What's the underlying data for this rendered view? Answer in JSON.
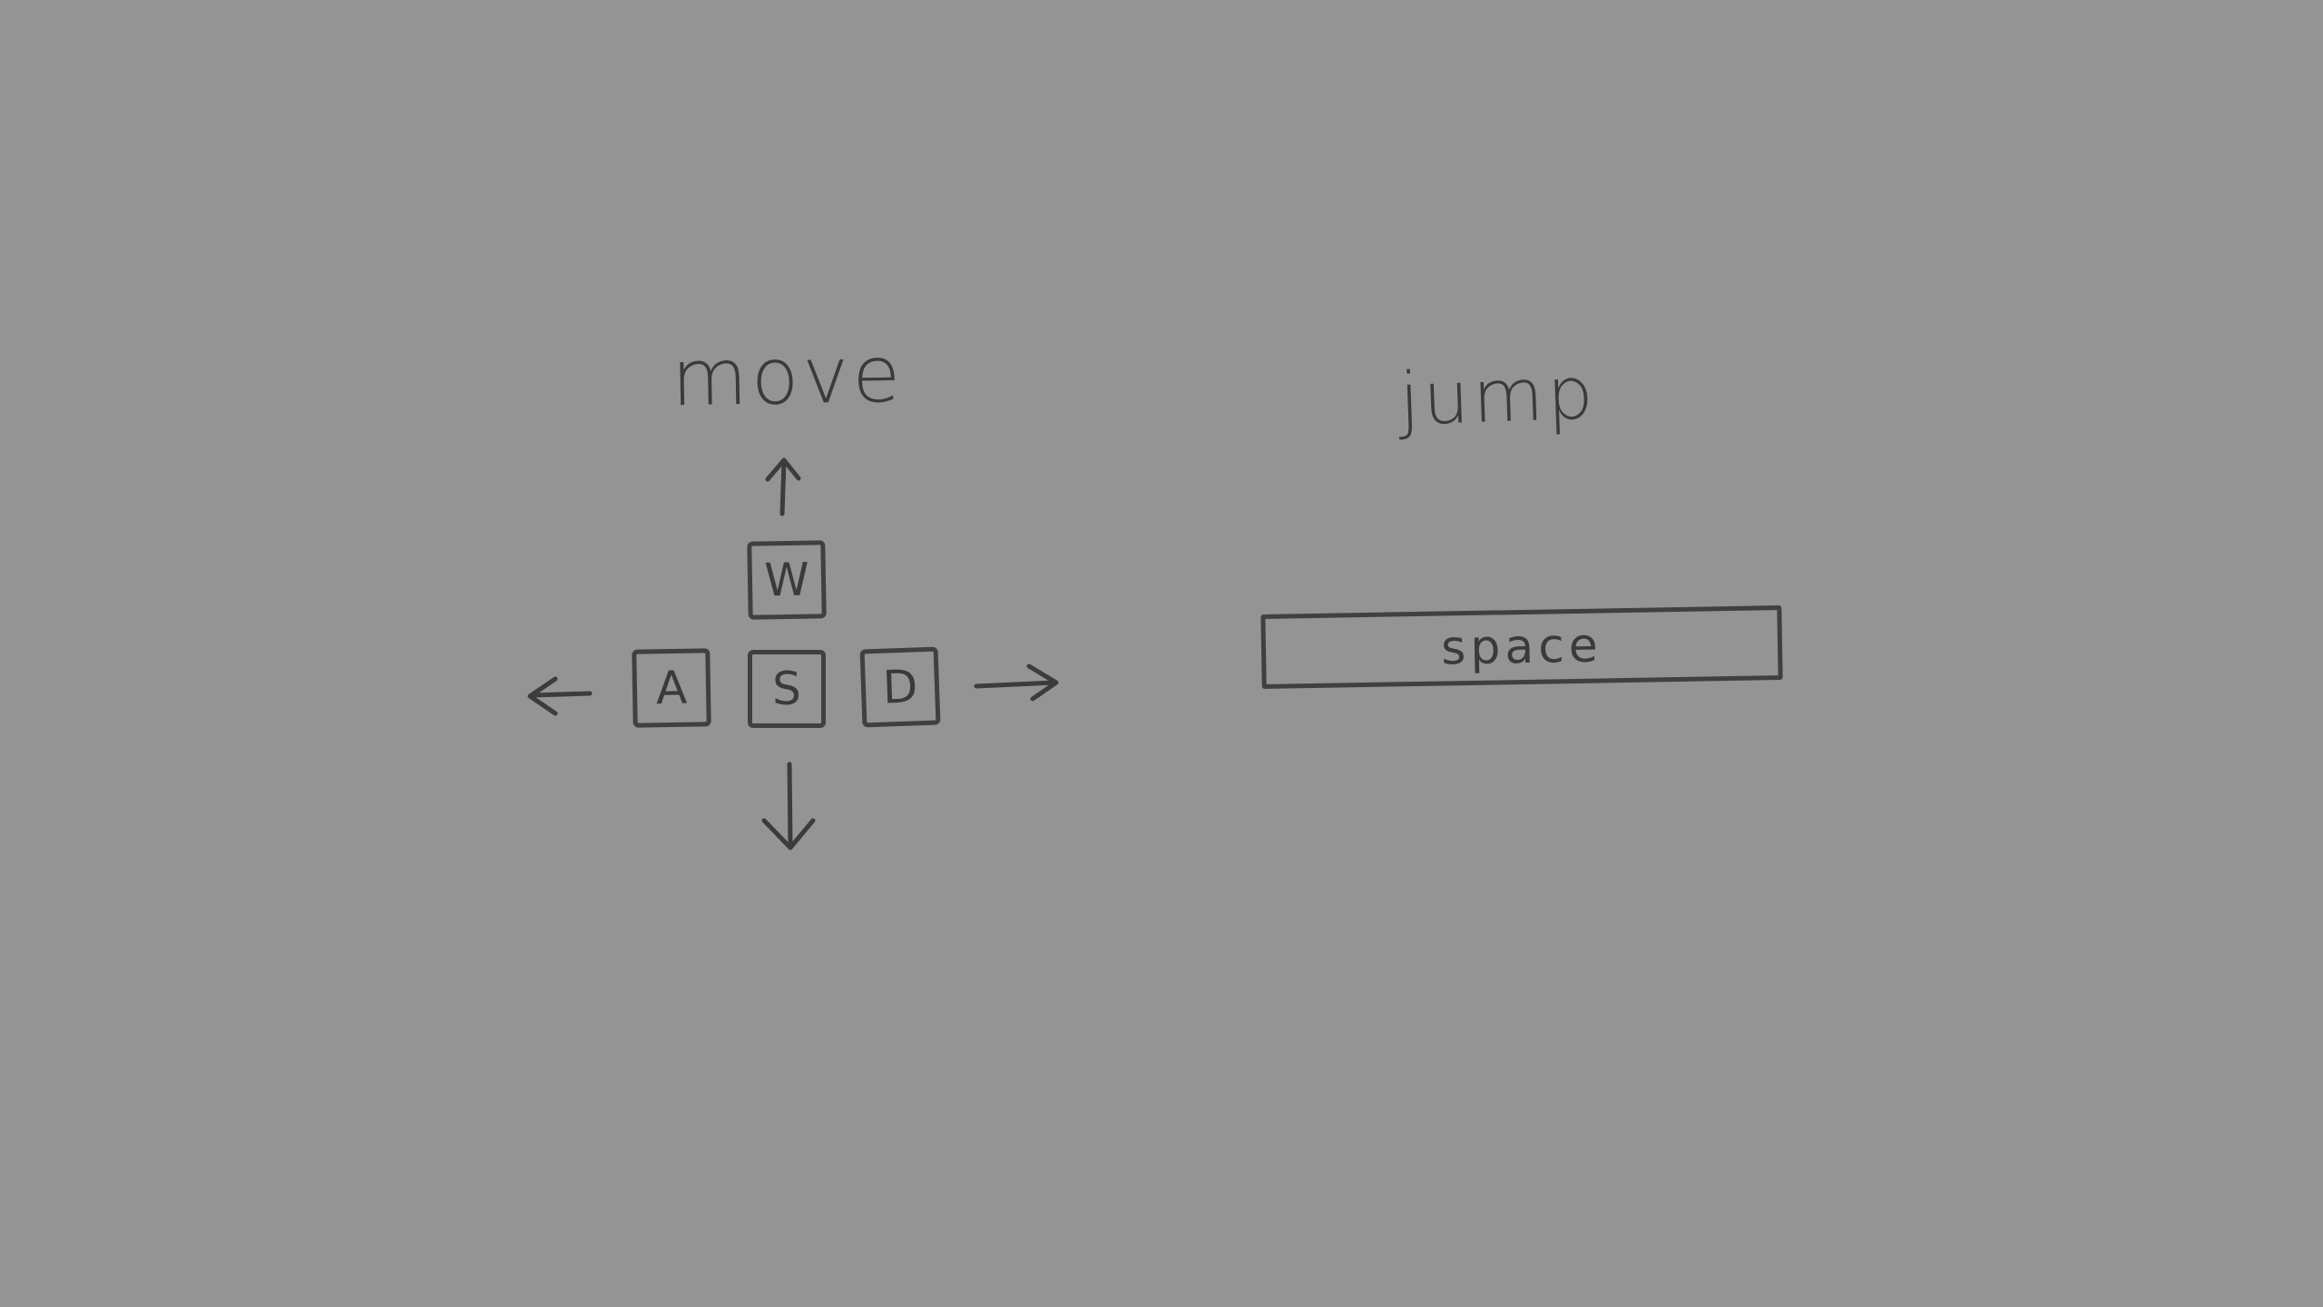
{
  "move_section": {
    "title": "move",
    "keys": {
      "up": "W",
      "left": "A",
      "down": "S",
      "right": "D"
    },
    "arrows": [
      "arrow-up-icon",
      "arrow-left-icon",
      "arrow-down-icon",
      "arrow-right-icon"
    ]
  },
  "jump_section": {
    "title": "jump",
    "key": "space"
  },
  "colors": {
    "background": "#949494",
    "ink": "#3c3c3c"
  }
}
